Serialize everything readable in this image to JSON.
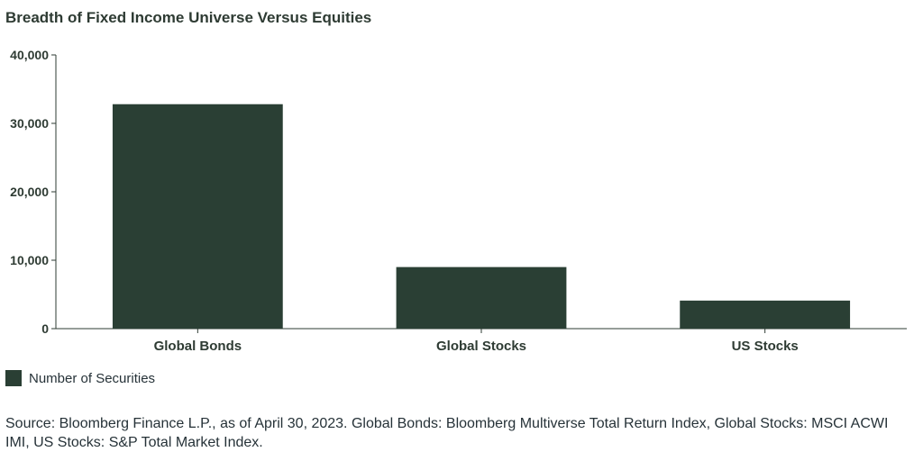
{
  "title": "Breadth of Fixed Income Universe Versus Equities",
  "colors": {
    "bar": "#2a3f34",
    "axis": "#2e3b33"
  },
  "chart_data": {
    "type": "bar",
    "title": "Breadth of Fixed Income Universe Versus Equities",
    "xlabel": "",
    "ylabel": "",
    "categories": [
      "Global Bonds",
      "Global Stocks",
      "US Stocks"
    ],
    "series": [
      {
        "name": "Number of Securities",
        "values": [
          32800,
          9000,
          4100
        ]
      }
    ],
    "ylim": [
      0,
      40000
    ],
    "yticks": [
      0,
      10000,
      20000,
      30000,
      40000
    ],
    "ytick_labels": [
      "0",
      "10,000",
      "20,000",
      "30,000",
      "40,000"
    ],
    "grid": false,
    "legend": "bottom-left"
  },
  "legend": {
    "label": "Number of Securities"
  },
  "source": "Source: Bloomberg Finance L.P., as of April 30, 2023. Global Bonds: Bloomberg Multiverse Total Return Index, Global Stocks: MSCI ACWI IMI, US Stocks: S&P Total Market Index."
}
